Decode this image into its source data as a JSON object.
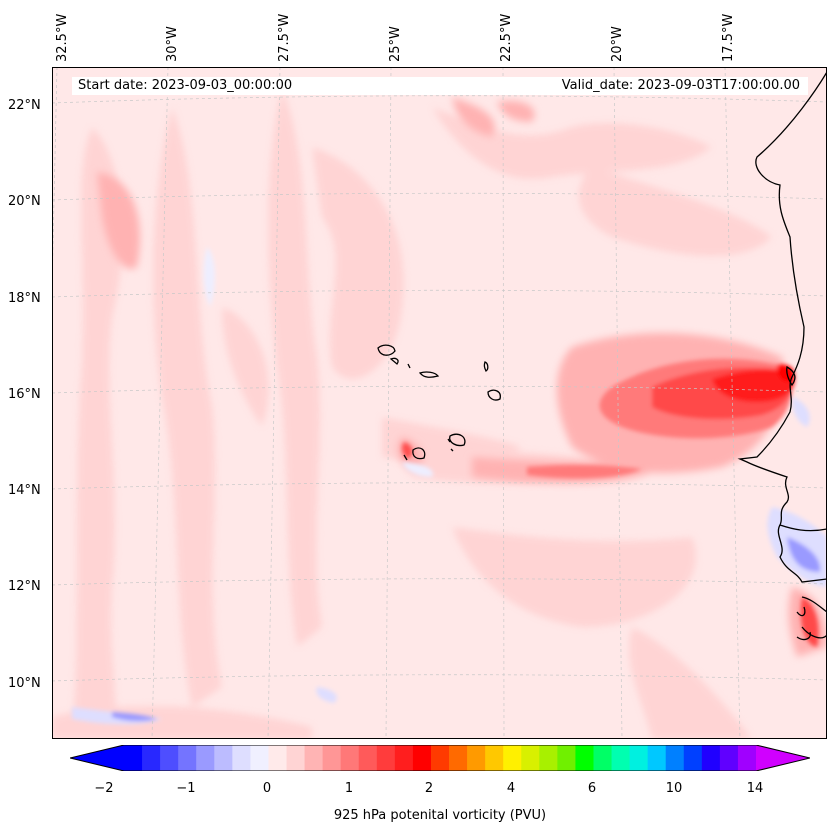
{
  "map": {
    "start_date": "Start date: 2023-09-03_00:00:00",
    "valid_date": "Valid_date: 2023-09-03T17:00:00.00",
    "lon_labels": [
      "32.5°W",
      "30°W",
      "27.5°W",
      "25°W",
      "22.5°W",
      "20°W",
      "17.5°W"
    ],
    "lat_labels": [
      "22°N",
      "20°N",
      "18°N",
      "16°N",
      "14°N",
      "12°N",
      "10°N"
    ],
    "colorbar": {
      "label": "925 hPa potenital vorticity (PVU)",
      "ticks": [
        "−2",
        "−1",
        "0",
        "1",
        "2",
        "4",
        "6",
        "10",
        "14"
      ],
      "colors": [
        "#0000ff",
        "#2828ff",
        "#4e4eff",
        "#7474ff",
        "#9a9aff",
        "#bcbcff",
        "#dedeff",
        "#f0f0ff",
        "#ffeaea",
        "#ffd4d4",
        "#ffb4b4",
        "#ff9696",
        "#ff7878",
        "#ff5a5a",
        "#ff3c3c",
        "#ff1e1e",
        "#ff0000",
        "#ff3a00",
        "#ff6a00",
        "#ff9a00",
        "#ffc800",
        "#fff000",
        "#d8f000",
        "#a8f000",
        "#70f000",
        "#00ff00",
        "#00ff66",
        "#00ffb0",
        "#00f0e0",
        "#00c8ff",
        "#0080ff",
        "#0040ff",
        "#2000ff",
        "#6000ff",
        "#a000ff"
      ],
      "extend_low": "#0000ff",
      "extend_high": "#d000ff"
    },
    "colors": {
      "background": "#ffe8e8",
      "coastline": "#000000",
      "gridline": "#c8c8c8"
    }
  }
}
